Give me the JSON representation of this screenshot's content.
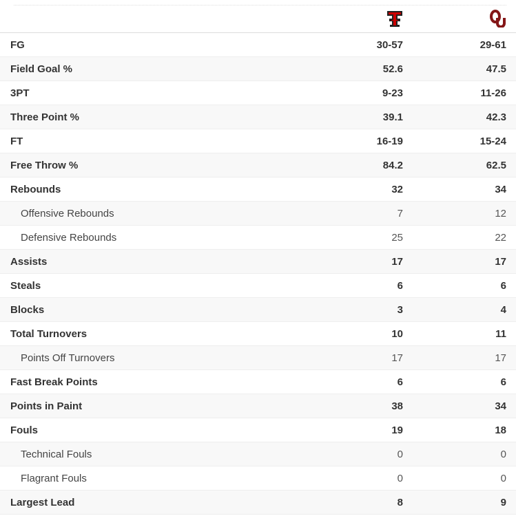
{
  "teams": [
    {
      "logo": "texas-tech-logo",
      "color": "#cc0000"
    },
    {
      "logo": "oklahoma-logo",
      "color": "#841617"
    }
  ],
  "rows": [
    {
      "label": "FG",
      "a": "30-57",
      "b": "29-61",
      "sub": false
    },
    {
      "label": "Field Goal %",
      "a": "52.6",
      "b": "47.5",
      "sub": false
    },
    {
      "label": "3PT",
      "a": "9-23",
      "b": "11-26",
      "sub": false
    },
    {
      "label": "Three Point %",
      "a": "39.1",
      "b": "42.3",
      "sub": false
    },
    {
      "label": "FT",
      "a": "16-19",
      "b": "15-24",
      "sub": false
    },
    {
      "label": "Free Throw %",
      "a": "84.2",
      "b": "62.5",
      "sub": false
    },
    {
      "label": "Rebounds",
      "a": "32",
      "b": "34",
      "sub": false
    },
    {
      "label": "Offensive Rebounds",
      "a": "7",
      "b": "12",
      "sub": true
    },
    {
      "label": "Defensive Rebounds",
      "a": "25",
      "b": "22",
      "sub": true
    },
    {
      "label": "Assists",
      "a": "17",
      "b": "17",
      "sub": false
    },
    {
      "label": "Steals",
      "a": "6",
      "b": "6",
      "sub": false
    },
    {
      "label": "Blocks",
      "a": "3",
      "b": "4",
      "sub": false
    },
    {
      "label": "Total Turnovers",
      "a": "10",
      "b": "11",
      "sub": false
    },
    {
      "label": "Points Off Turnovers",
      "a": "17",
      "b": "17",
      "sub": true
    },
    {
      "label": "Fast Break Points",
      "a": "6",
      "b": "6",
      "sub": false
    },
    {
      "label": "Points in Paint",
      "a": "38",
      "b": "34",
      "sub": false
    },
    {
      "label": "Fouls",
      "a": "19",
      "b": "18",
      "sub": false
    },
    {
      "label": "Technical Fouls",
      "a": "0",
      "b": "0",
      "sub": true
    },
    {
      "label": "Flagrant Fouls",
      "a": "0",
      "b": "0",
      "sub": true
    },
    {
      "label": "Largest Lead",
      "a": "8",
      "b": "9",
      "sub": false
    }
  ]
}
